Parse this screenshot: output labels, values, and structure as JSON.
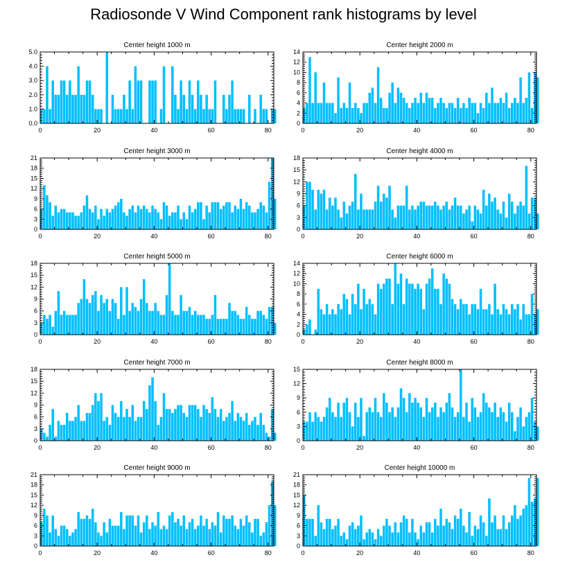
{
  "figure": {
    "title": "Radiosonde V Wind Component rank histograms by level"
  },
  "colors": {
    "bar": "#00bfff",
    "bar_edge": "#7fdcff",
    "axis": "#000000"
  },
  "chart_data": [
    {
      "type": "bar",
      "title": "Center height 1000 m",
      "xlim": [
        0,
        82
      ],
      "xticks": [
        0,
        20,
        40,
        60,
        80
      ],
      "ylim": [
        0,
        5
      ],
      "yticks": [
        0,
        1,
        2,
        3,
        4,
        5
      ],
      "ytick_labels": [
        "0.0",
        "1.0",
        "2.0",
        "3.0",
        "4.0",
        "5.0"
      ],
      "values": [
        1,
        1,
        4,
        1,
        3,
        2,
        2,
        3,
        3,
        2,
        3,
        2,
        2,
        4,
        2,
        2,
        3,
        3,
        2,
        1,
        1,
        1,
        0,
        5,
        0,
        2,
        1,
        1,
        1,
        2,
        1,
        3,
        1,
        4,
        3,
        3,
        0,
        0,
        3,
        3,
        3,
        0,
        1,
        4,
        0,
        0,
        4,
        2,
        1,
        3,
        2,
        1,
        3,
        2,
        1,
        3,
        2,
        1,
        2,
        1,
        1,
        3,
        0,
        0,
        2,
        1,
        2,
        3,
        1,
        1,
        1,
        1,
        0,
        2,
        0,
        1,
        0,
        2,
        1,
        1,
        0,
        1,
        1
      ],
      "xlabel": "",
      "ylabel": ""
    },
    {
      "type": "bar",
      "title": "Center height 2000 m",
      "xlim": [
        0,
        82
      ],
      "xticks": [
        0,
        20,
        40,
        60,
        80
      ],
      "ylim": [
        0,
        14
      ],
      "yticks": [
        0,
        2,
        4,
        6,
        8,
        10,
        12,
        14
      ],
      "ytick_labels": [
        "0",
        "2",
        "4",
        "6",
        "8",
        "10",
        "12",
        "14"
      ],
      "values": [
        3,
        4,
        13,
        4,
        10,
        4,
        4,
        8,
        4,
        4,
        4,
        2,
        9,
        3,
        4,
        3,
        8,
        3,
        4,
        3,
        2,
        4,
        4,
        6,
        7,
        4,
        11,
        5,
        3,
        3,
        6,
        8,
        4,
        7,
        6,
        5,
        4,
        3,
        4,
        5,
        4,
        6,
        4,
        6,
        5,
        5,
        3,
        4,
        5,
        4,
        3,
        4,
        4,
        3,
        5,
        3,
        4,
        3,
        5,
        4,
        4,
        2,
        4,
        3,
        6,
        4,
        7,
        4,
        4,
        5,
        4,
        6,
        3,
        4,
        5,
        4,
        9,
        4,
        5,
        10,
        3,
        10,
        9
      ],
      "xlabel": "",
      "ylabel": ""
    },
    {
      "type": "bar",
      "title": "Center height 3000 m",
      "xlim": [
        0,
        82
      ],
      "xticks": [
        0,
        20,
        40,
        60,
        80
      ],
      "ylim": [
        0,
        21
      ],
      "yticks": [
        0,
        3,
        6,
        9,
        12,
        15,
        18,
        21
      ],
      "ytick_labels": [
        "0",
        "3",
        "6",
        "9",
        "12",
        "15",
        "18",
        "21"
      ],
      "values": [
        6,
        13,
        10,
        8,
        4,
        7,
        5,
        6,
        6,
        5,
        5,
        5,
        4,
        4,
        5,
        7,
        10,
        6,
        5,
        7,
        3,
        6,
        4,
        6,
        5,
        6,
        7,
        8,
        9,
        5,
        4,
        6,
        7,
        5,
        7,
        6,
        7,
        6,
        5,
        7,
        6,
        5,
        3,
        8,
        7,
        4,
        5,
        5,
        7,
        3,
        5,
        3,
        7,
        5,
        6,
        8,
        8,
        3,
        7,
        5,
        8,
        8,
        8,
        6,
        7,
        8,
        8,
        5,
        7,
        6,
        9,
        6,
        8,
        7,
        5,
        5,
        6,
        8,
        7,
        5,
        14,
        21,
        9
      ],
      "xlabel": "",
      "ylabel": ""
    },
    {
      "type": "bar",
      "title": "Center height 4000 m",
      "xlim": [
        0,
        82
      ],
      "xticks": [
        0,
        20,
        40,
        60,
        80
      ],
      "ylim": [
        0,
        18
      ],
      "yticks": [
        0,
        3,
        6,
        9,
        12,
        15,
        18
      ],
      "ytick_labels": [
        "0",
        "3",
        "6",
        "9",
        "12",
        "15",
        "18"
      ],
      "values": [
        6,
        12,
        12,
        10,
        5,
        10,
        9,
        10,
        5,
        8,
        6,
        8,
        5,
        3,
        7,
        4,
        6,
        7,
        14,
        5,
        9,
        5,
        5,
        5,
        5,
        7,
        11,
        7,
        9,
        8,
        11,
        5,
        3,
        6,
        6,
        6,
        11,
        5,
        6,
        5,
        6,
        7,
        7,
        6,
        6,
        6,
        7,
        6,
        5,
        6,
        7,
        5,
        6,
        8,
        6,
        6,
        4,
        5,
        6,
        2,
        6,
        5,
        4,
        10,
        6,
        9,
        7,
        8,
        5,
        4,
        7,
        3,
        9,
        7,
        4,
        6,
        7,
        6,
        16,
        4,
        8,
        8,
        4
      ],
      "xlabel": "",
      "ylabel": ""
    },
    {
      "type": "bar",
      "title": "Center height 5000 m",
      "xlim": [
        0,
        82
      ],
      "xticks": [
        0,
        20,
        40,
        60,
        80
      ],
      "ylim": [
        0,
        18
      ],
      "yticks": [
        0,
        3,
        6,
        9,
        12,
        15,
        18
      ],
      "ytick_labels": [
        "0",
        "3",
        "6",
        "9",
        "12",
        "15",
        "18"
      ],
      "values": [
        3,
        5,
        4,
        5,
        2,
        6,
        11,
        5,
        6,
        5,
        5,
        5,
        5,
        8,
        9,
        14,
        9,
        8,
        10,
        11,
        6,
        10,
        8,
        9,
        6,
        9,
        8,
        4,
        12,
        5,
        12,
        6,
        8,
        7,
        6,
        9,
        14,
        8,
        6,
        6,
        8,
        6,
        5,
        5,
        10,
        18,
        6,
        5,
        5,
        10,
        6,
        6,
        7,
        5,
        6,
        5,
        5,
        5,
        4,
        4,
        5,
        10,
        4,
        4,
        4,
        4,
        8,
        6,
        6,
        5,
        4,
        4,
        7,
        5,
        4,
        4,
        6,
        6,
        5,
        4,
        7,
        7,
        3
      ],
      "xlabel": "",
      "ylabel": ""
    },
    {
      "type": "bar",
      "title": "Center height 6000 m",
      "xlim": [
        0,
        82
      ],
      "xticks": [
        0,
        20,
        40,
        60,
        80
      ],
      "ylim": [
        0,
        14
      ],
      "yticks": [
        0,
        2,
        4,
        6,
        8,
        10,
        12,
        14
      ],
      "ytick_labels": [
        "0",
        "2",
        "4",
        "6",
        "8",
        "10",
        "12",
        "14"
      ],
      "values": [
        1,
        2,
        3,
        0,
        1,
        9,
        5,
        4,
        6,
        4,
        5,
        4,
        6,
        5,
        8,
        7,
        4,
        8,
        6,
        10,
        5,
        9,
        6,
        7,
        6,
        4,
        10,
        9,
        10,
        11,
        11,
        6,
        14,
        10,
        12,
        6,
        11,
        10,
        10,
        9,
        10,
        9,
        5,
        10,
        11,
        13,
        9,
        9,
        6,
        12,
        11,
        10,
        7,
        6,
        5,
        7,
        6,
        6,
        4,
        6,
        6,
        5,
        9,
        5,
        5,
        6,
        4,
        10,
        5,
        4,
        6,
        5,
        4,
        6,
        5,
        6,
        3,
        6,
        4,
        4,
        8,
        4,
        5
      ],
      "xlabel": "",
      "ylabel": ""
    },
    {
      "type": "bar",
      "title": "Center height 7000 m",
      "xlim": [
        0,
        82
      ],
      "xticks": [
        0,
        20,
        40,
        60,
        80
      ],
      "ylim": [
        0,
        18
      ],
      "yticks": [
        0,
        3,
        6,
        9,
        12,
        15,
        18
      ],
      "ytick_labels": [
        "0",
        "3",
        "6",
        "9",
        "12",
        "15",
        "18"
      ],
      "values": [
        3,
        2,
        1,
        4,
        8,
        1,
        5,
        4,
        4,
        7,
        5,
        5,
        6,
        9,
        5,
        5,
        7,
        7,
        9,
        12,
        10,
        12,
        5,
        6,
        4,
        9,
        7,
        6,
        10,
        6,
        8,
        6,
        9,
        5,
        6,
        6,
        10,
        8,
        14,
        16,
        10,
        4,
        6,
        12,
        8,
        8,
        7,
        8,
        9,
        9,
        7,
        6,
        9,
        9,
        9,
        8,
        6,
        9,
        8,
        7,
        11,
        8,
        6,
        8,
        5,
        6,
        7,
        10,
        5,
        7,
        6,
        5,
        7,
        4,
        5,
        6,
        4,
        7,
        4,
        2,
        1,
        8,
        2
      ],
      "xlabel": "",
      "ylabel": ""
    },
    {
      "type": "bar",
      "title": "Center height 8000 m",
      "xlim": [
        0,
        82
      ],
      "xticks": [
        0,
        20,
        40,
        60,
        80
      ],
      "ylim": [
        0,
        15
      ],
      "yticks": [
        0,
        3,
        6,
        9,
        12,
        15
      ],
      "ytick_labels": [
        "0",
        "3",
        "6",
        "9",
        "12",
        "15"
      ],
      "values": [
        4,
        4,
        6,
        4,
        6,
        5,
        4,
        5,
        7,
        9,
        6,
        5,
        8,
        5,
        8,
        9,
        6,
        3,
        8,
        5,
        9,
        1,
        6,
        7,
        6,
        9,
        6,
        5,
        10,
        8,
        6,
        7,
        5,
        7,
        11,
        9,
        6,
        10,
        8,
        9,
        8,
        7,
        5,
        9,
        6,
        7,
        8,
        5,
        7,
        6,
        8,
        10,
        7,
        5,
        6,
        15,
        5,
        8,
        4,
        9,
        7,
        5,
        6,
        10,
        8,
        7,
        6,
        8,
        5,
        7,
        6,
        4,
        8,
        6,
        2,
        5,
        7,
        3,
        5,
        6,
        9,
        4,
        3
      ],
      "xlabel": "",
      "ylabel": ""
    },
    {
      "type": "bar",
      "title": "Center height 9000 m",
      "xlim": [
        0,
        82
      ],
      "xticks": [
        0,
        20,
        40,
        60,
        80
      ],
      "ylim": [
        0,
        21
      ],
      "yticks": [
        0,
        3,
        6,
        9,
        12,
        15,
        18,
        21
      ],
      "ytick_labels": [
        "0",
        "3",
        "6",
        "9",
        "12",
        "15",
        "18",
        "21"
      ],
      "values": [
        7,
        11,
        9,
        4,
        9,
        5,
        3,
        6,
        6,
        5,
        3,
        4,
        5,
        10,
        8,
        8,
        9,
        8,
        11,
        7,
        4,
        3,
        7,
        4,
        8,
        6,
        6,
        6,
        10,
        5,
        9,
        9,
        9,
        6,
        9,
        4,
        7,
        9,
        5,
        7,
        6,
        10,
        5,
        6,
        5,
        9,
        10,
        7,
        8,
        6,
        9,
        5,
        7,
        8,
        5,
        6,
        9,
        6,
        8,
        5,
        7,
        6,
        10,
        4,
        9,
        8,
        8,
        9,
        6,
        5,
        8,
        6,
        9,
        7,
        4,
        8,
        8,
        3,
        4,
        7,
        12,
        19,
        12
      ],
      "xlabel": "",
      "ylabel": ""
    },
    {
      "type": "bar",
      "title": "Center height 10000 m",
      "xlim": [
        0,
        82
      ],
      "xticks": [
        0,
        20,
        40,
        60,
        80
      ],
      "ylim": [
        0,
        21
      ],
      "yticks": [
        0,
        3,
        6,
        9,
        12,
        15,
        18,
        21
      ],
      "ytick_labels": [
        "0",
        "3",
        "6",
        "9",
        "12",
        "15",
        "18",
        "21"
      ],
      "values": [
        15,
        8,
        8,
        8,
        3,
        12,
        7,
        5,
        8,
        8,
        5,
        6,
        8,
        3,
        4,
        2,
        6,
        7,
        5,
        6,
        9,
        2,
        4,
        5,
        4,
        2,
        5,
        3,
        6,
        8,
        6,
        4,
        7,
        4,
        7,
        9,
        8,
        4,
        8,
        4,
        2,
        6,
        4,
        7,
        7,
        4,
        8,
        6,
        11,
        6,
        8,
        7,
        5,
        9,
        8,
        11,
        6,
        4,
        10,
        3,
        6,
        5,
        9,
        7,
        3,
        14,
        7,
        9,
        5,
        5,
        9,
        5,
        7,
        9,
        12,
        8,
        9,
        11,
        12,
        20,
        13,
        14,
        20
      ],
      "xlabel": "",
      "ylabel": ""
    }
  ]
}
